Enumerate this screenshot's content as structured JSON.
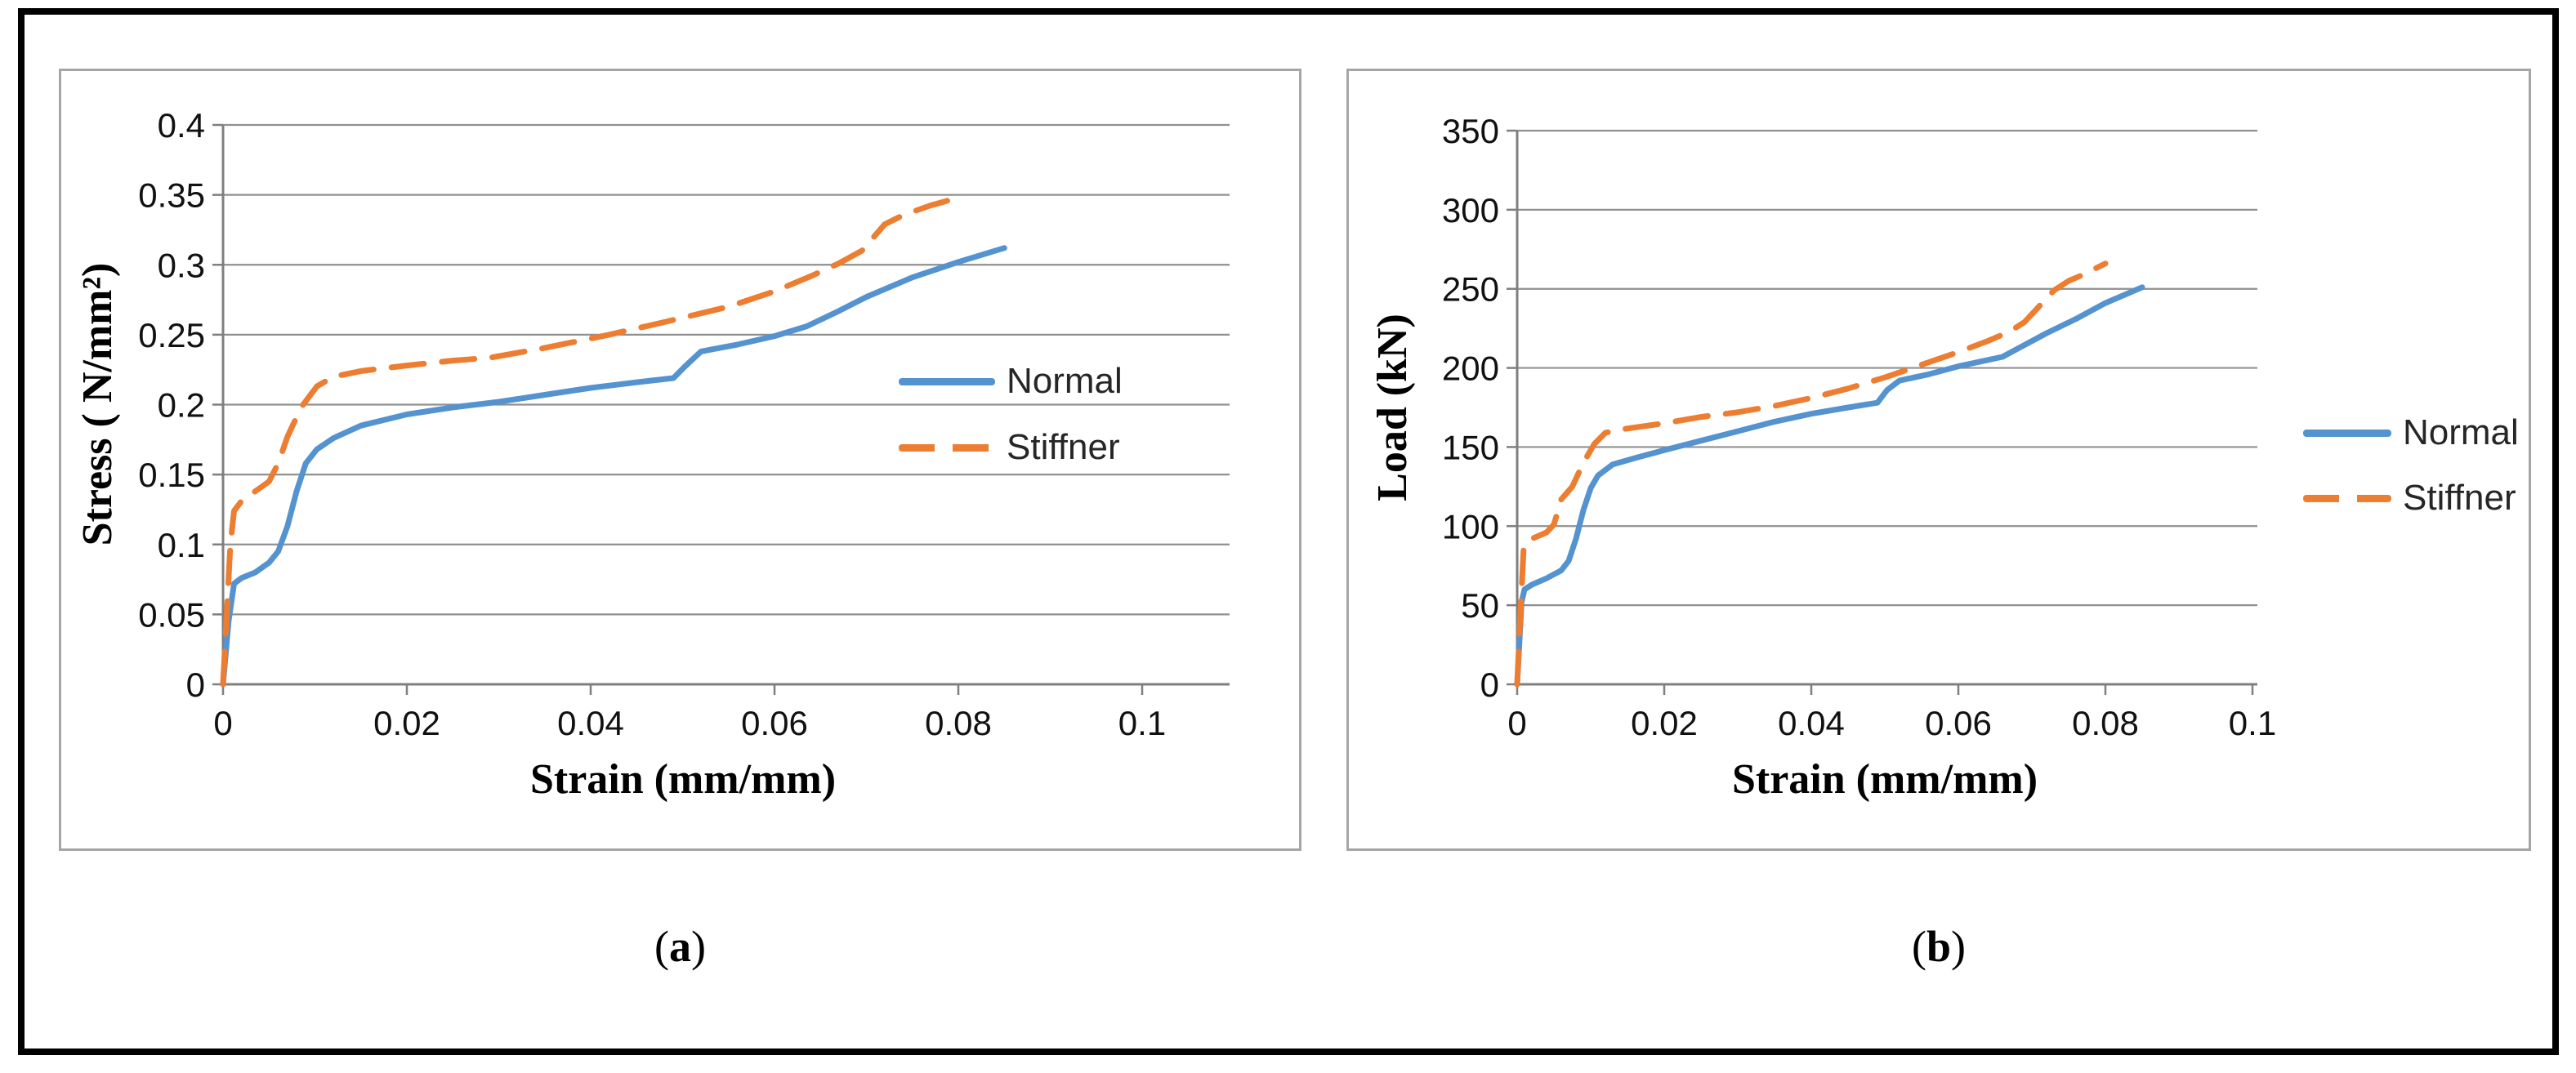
{
  "figure": {
    "captions": {
      "a": {
        "open": "(",
        "letter": "a",
        "close": ")"
      },
      "b": {
        "open": "(",
        "letter": "b",
        "close": ")"
      }
    }
  },
  "colors": {
    "normal_series": "#5593d0",
    "stiffner_series": "#ed7d31",
    "gridline": "#909090",
    "axis": "#7f7f7f",
    "tick_text": "#111111",
    "panel_border": "#a6a6a6",
    "outer_border": "#000000"
  },
  "chart_data": [
    {
      "id": "a",
      "type": "line",
      "grid": "horizontal",
      "x_axis": {
        "label": "Strain (mm/mm)",
        "min": 0,
        "max": 0.1,
        "tick_step": 0.02,
        "tick_labels": [
          "0",
          "0.02",
          "0.04",
          "0.06",
          "0.08",
          "0.1"
        ]
      },
      "y_axis": {
        "label": "Stress ( N/mm²)",
        "min": 0,
        "max": 0.4,
        "tick_step": 0.05,
        "tick_labels": [
          "0",
          "0.05",
          "0.1",
          "0.15",
          "0.2",
          "0.25",
          "0.3",
          "0.35",
          "0.4"
        ]
      },
      "legend": {
        "position": "inside-right",
        "entries": [
          "Normal",
          "Stiffner"
        ]
      },
      "series": [
        {
          "name": "Normal",
          "line_style": "solid",
          "color": "#5593d0",
          "points": [
            [
              0,
              0
            ],
            [
              0.0006,
              0.045
            ],
            [
              0.0012,
              0.072
            ],
            [
              0.002,
              0.076
            ],
            [
              0.0035,
              0.08
            ],
            [
              0.005,
              0.087
            ],
            [
              0.006,
              0.095
            ],
            [
              0.007,
              0.113
            ],
            [
              0.008,
              0.138
            ],
            [
              0.009,
              0.158
            ],
            [
              0.0102,
              0.168
            ],
            [
              0.012,
              0.176
            ],
            [
              0.015,
              0.185
            ],
            [
              0.02,
              0.193
            ],
            [
              0.025,
              0.198
            ],
            [
              0.03,
              0.202
            ],
            [
              0.035,
              0.207
            ],
            [
              0.04,
              0.212
            ],
            [
              0.045,
              0.216
            ],
            [
              0.049,
              0.219
            ],
            [
              0.0502,
              0.227
            ],
            [
              0.052,
              0.238
            ],
            [
              0.056,
              0.243
            ],
            [
              0.06,
              0.249
            ],
            [
              0.0635,
              0.256
            ],
            [
              0.067,
              0.267
            ],
            [
              0.07,
              0.277
            ],
            [
              0.075,
              0.291
            ],
            [
              0.08,
              0.302
            ],
            [
              0.085,
              0.312
            ]
          ]
        },
        {
          "name": "Stiffner",
          "line_style": "dashed",
          "color": "#ed7d31",
          "points": [
            [
              0,
              0
            ],
            [
              0.0004,
              0.05
            ],
            [
              0.0008,
              0.1
            ],
            [
              0.0012,
              0.124
            ],
            [
              0.002,
              0.131
            ],
            [
              0.0035,
              0.138
            ],
            [
              0.005,
              0.145
            ],
            [
              0.006,
              0.158
            ],
            [
              0.007,
              0.177
            ],
            [
              0.0085,
              0.198
            ],
            [
              0.0102,
              0.213
            ],
            [
              0.012,
              0.22
            ],
            [
              0.015,
              0.224
            ],
            [
              0.02,
              0.228
            ],
            [
              0.025,
              0.2315
            ],
            [
              0.029,
              0.2335
            ],
            [
              0.035,
              0.2405
            ],
            [
              0.042,
              0.25
            ],
            [
              0.048,
              0.259
            ],
            [
              0.055,
              0.27
            ],
            [
              0.06,
              0.281
            ],
            [
              0.064,
              0.292
            ],
            [
              0.067,
              0.301
            ],
            [
              0.0695,
              0.31
            ],
            [
              0.072,
              0.329
            ],
            [
              0.074,
              0.3355
            ],
            [
              0.077,
              0.3425
            ],
            [
              0.08,
              0.348
            ]
          ]
        }
      ]
    },
    {
      "id": "b",
      "type": "line",
      "grid": "horizontal",
      "x_axis": {
        "label": "Strain (mm/mm)",
        "min": 0,
        "max": 0.1,
        "tick_step": 0.02,
        "tick_labels": [
          "0",
          "0.02",
          "0.04",
          "0.06",
          "0.08",
          "0.1"
        ]
      },
      "y_axis": {
        "label": "Load (kN)",
        "min": 0,
        "max": 350,
        "tick_step": 50,
        "tick_labels": [
          "0",
          "50",
          "100",
          "150",
          "200",
          "250",
          "300",
          "350"
        ]
      },
      "legend": {
        "position": "outside-right",
        "entries": [
          "Normal",
          "Stiffner"
        ]
      },
      "series": [
        {
          "name": "Normal",
          "line_style": "solid",
          "color": "#5593d0",
          "points": [
            [
              0,
              0
            ],
            [
              0.0006,
              52
            ],
            [
              0.001,
              60
            ],
            [
              0.002,
              63
            ],
            [
              0.004,
              67
            ],
            [
              0.006,
              72
            ],
            [
              0.007,
              78
            ],
            [
              0.008,
              92
            ],
            [
              0.009,
              110
            ],
            [
              0.01,
              124
            ],
            [
              0.011,
              132
            ],
            [
              0.013,
              139
            ],
            [
              0.016,
              143
            ],
            [
              0.02,
              148
            ],
            [
              0.025,
              154
            ],
            [
              0.03,
              160
            ],
            [
              0.035,
              166
            ],
            [
              0.04,
              171
            ],
            [
              0.045,
              175
            ],
            [
              0.049,
              178
            ],
            [
              0.0503,
              186
            ],
            [
              0.052,
              192
            ],
            [
              0.056,
              196
            ],
            [
              0.06,
              201
            ],
            [
              0.063,
              204
            ],
            [
              0.066,
              207
            ],
            [
              0.068,
              212
            ],
            [
              0.072,
              222
            ],
            [
              0.076,
              231
            ],
            [
              0.08,
              241
            ],
            [
              0.085,
              251
            ]
          ]
        },
        {
          "name": "Stiffner",
          "line_style": "dashed",
          "color": "#ed7d31",
          "points": [
            [
              0,
              0
            ],
            [
              0.0004,
              40
            ],
            [
              0.0009,
              88
            ],
            [
              0.002,
              92
            ],
            [
              0.004,
              96
            ],
            [
              0.005,
              101
            ],
            [
              0.006,
              117
            ],
            [
              0.0075,
              125
            ],
            [
              0.009,
              140
            ],
            [
              0.0105,
              152
            ],
            [
              0.012,
              159
            ],
            [
              0.014,
              161
            ],
            [
              0.017,
              163
            ],
            [
              0.02,
              165
            ],
            [
              0.025,
              169
            ],
            [
              0.03,
              172
            ],
            [
              0.035,
              176
            ],
            [
              0.04,
              181
            ],
            [
              0.045,
              187
            ],
            [
              0.05,
              194
            ],
            [
              0.055,
              202
            ],
            [
              0.06,
              210
            ],
            [
              0.064,
              217
            ],
            [
              0.067,
              223
            ],
            [
              0.069,
              229
            ],
            [
              0.071,
              239
            ],
            [
              0.073,
              249
            ],
            [
              0.075,
              255
            ],
            [
              0.077,
              259
            ],
            [
              0.08,
              266
            ]
          ]
        }
      ]
    }
  ]
}
